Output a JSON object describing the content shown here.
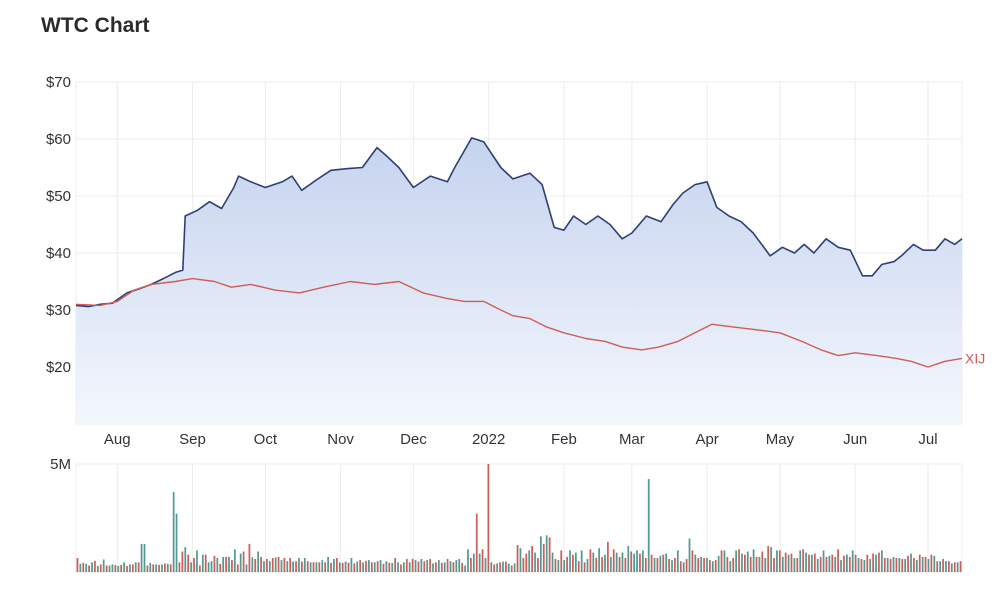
{
  "header": {
    "title": "WTC Chart"
  },
  "colors": {
    "wtc_line": "#2f3f74",
    "wtc_fill_top": "#c5d3ee",
    "wtc_fill_bottom": "#f4f7fd",
    "xij_line": "#cf5d57",
    "volume_up": "#4f9a94",
    "volume_down": "#cf5d57",
    "grid": "#ececec",
    "axis_text": "#333333"
  },
  "chart_data": [
    {
      "type": "line",
      "title": "",
      "xlabel": "",
      "ylabel": "",
      "ylim": [
        10,
        70
      ],
      "x_range": [
        "2021-07-15",
        "2022-07-15"
      ],
      "y_ticks": [
        "$20",
        "$30",
        "$40",
        "$50",
        "$60",
        "$70"
      ],
      "y_tick_values": [
        20,
        30,
        40,
        50,
        60,
        70
      ],
      "x_ticks": [
        "Aug",
        "Sep",
        "Oct",
        "Nov",
        "Dec",
        "2022",
        "Feb",
        "Mar",
        "Apr",
        "May",
        "Jun",
        "Jul"
      ],
      "x_tick_dates": [
        "2021-08-01",
        "2021-09-01",
        "2021-10-01",
        "2021-11-01",
        "2021-12-01",
        "2022-01-01",
        "2022-02-01",
        "2022-03-01",
        "2022-04-01",
        "2022-05-01",
        "2022-06-01",
        "2022-07-01"
      ],
      "grid": true,
      "series": [
        {
          "name": "",
          "style": "area",
          "x": [
            "2021-07-15",
            "2021-07-20",
            "2021-07-25",
            "2021-07-30",
            "2021-08-05",
            "2021-08-10",
            "2021-08-15",
            "2021-08-20",
            "2021-08-25",
            "2021-08-28",
            "2021-08-29",
            "2021-09-03",
            "2021-09-08",
            "2021-09-13",
            "2021-09-18",
            "2021-09-20",
            "2021-09-25",
            "2021-10-01",
            "2021-10-08",
            "2021-10-12",
            "2021-10-16",
            "2021-10-22",
            "2021-10-28",
            "2021-11-04",
            "2021-11-10",
            "2021-11-16",
            "2021-11-20",
            "2021-11-25",
            "2021-12-01",
            "2021-12-08",
            "2021-12-15",
            "2021-12-18",
            "2021-12-25",
            "2021-12-30",
            "2022-01-06",
            "2022-01-11",
            "2022-01-18",
            "2022-01-23",
            "2022-01-28",
            "2022-02-01",
            "2022-02-05",
            "2022-02-10",
            "2022-02-15",
            "2022-02-20",
            "2022-02-25",
            "2022-03-01",
            "2022-03-07",
            "2022-03-13",
            "2022-03-18",
            "2022-03-22",
            "2022-03-27",
            "2022-04-01",
            "2022-04-05",
            "2022-04-10",
            "2022-04-15",
            "2022-04-20",
            "2022-04-27",
            "2022-05-02",
            "2022-05-07",
            "2022-05-11",
            "2022-05-15",
            "2022-05-20",
            "2022-05-25",
            "2022-05-30",
            "2022-06-04",
            "2022-06-08",
            "2022-06-12",
            "2022-06-17",
            "2022-06-20",
            "2022-06-25",
            "2022-06-29",
            "2022-07-04",
            "2022-07-08",
            "2022-07-12",
            "2022-07-15"
          ],
          "y": [
            30.8,
            30.6,
            31.0,
            31.2,
            33.0,
            33.7,
            34.5,
            35.5,
            36.6,
            37.0,
            46.5,
            47.5,
            49.0,
            47.8,
            51.5,
            53.5,
            52.5,
            51.5,
            52.5,
            53.5,
            51.0,
            52.8,
            54.5,
            54.8,
            55.0,
            58.5,
            57.0,
            55.0,
            51.5,
            53.5,
            52.5,
            55.0,
            60.2,
            59.5,
            55.0,
            53.0,
            54.0,
            52.0,
            44.5,
            44.0,
            46.5,
            45.0,
            46.5,
            45.0,
            42.5,
            43.5,
            46.5,
            45.5,
            48.5,
            50.5,
            52.0,
            52.5,
            48.0,
            46.5,
            45.5,
            43.5,
            39.5,
            41.0,
            40.0,
            41.5,
            40.0,
            42.5,
            41.0,
            40.5,
            36.0,
            36.0,
            38.0,
            38.5,
            39.5,
            41.5,
            40.5,
            40.5,
            42.5,
            41.5,
            42.5
          ]
        },
        {
          "name": "XIJ",
          "style": "line",
          "x": [
            "2021-07-15",
            "2021-07-25",
            "2021-08-01",
            "2021-08-08",
            "2021-08-15",
            "2021-08-25",
            "2021-09-01",
            "2021-09-10",
            "2021-09-17",
            "2021-09-25",
            "2021-10-05",
            "2021-10-15",
            "2021-10-25",
            "2021-11-05",
            "2021-11-15",
            "2021-11-25",
            "2021-12-05",
            "2021-12-15",
            "2021-12-22",
            "2021-12-30",
            "2022-01-06",
            "2022-01-11",
            "2022-01-18",
            "2022-01-25",
            "2022-02-01",
            "2022-02-10",
            "2022-02-18",
            "2022-02-25",
            "2022-03-05",
            "2022-03-12",
            "2022-03-20",
            "2022-03-27",
            "2022-04-03",
            "2022-04-12",
            "2022-04-22",
            "2022-05-01",
            "2022-05-10",
            "2022-05-18",
            "2022-05-25",
            "2022-06-01",
            "2022-06-10",
            "2022-06-18",
            "2022-06-24",
            "2022-07-01",
            "2022-07-08",
            "2022-07-15"
          ],
          "y": [
            31.0,
            30.8,
            31.5,
            33.5,
            34.5,
            35.0,
            35.5,
            35.0,
            34.0,
            34.5,
            33.5,
            33.0,
            34.0,
            35.0,
            34.5,
            35.0,
            33.0,
            32.0,
            31.5,
            31.5,
            30.0,
            29.0,
            28.5,
            27.0,
            26.0,
            25.0,
            24.5,
            23.5,
            23.0,
            23.5,
            24.5,
            26.0,
            27.5,
            27.0,
            26.5,
            26.0,
            24.5,
            23.0,
            22.0,
            22.5,
            22.0,
            21.5,
            21.0,
            20.0,
            21.0,
            21.5
          ]
        }
      ]
    },
    {
      "type": "bar",
      "title": "",
      "xlabel": "",
      "ylabel": "",
      "ylim": [
        0,
        5000000
      ],
      "y_ticks": [
        "5M"
      ],
      "y_tick_values": [
        5000000
      ],
      "values": [
        650000,
        380000,
        420000,
        380000,
        300000,
        450000,
        520000,
        280000,
        350000,
        580000,
        300000,
        300000,
        350000,
        320000,
        280000,
        330000,
        450000,
        280000,
        350000,
        350000,
        450000,
        450000,
        1300000,
        1300000,
        300000,
        420000,
        350000,
        350000,
        330000,
        350000,
        400000,
        380000,
        350000,
        3700000,
        2700000,
        450000,
        950000,
        1150000,
        800000,
        450000,
        650000,
        1000000,
        300000,
        800000,
        800000,
        450000,
        500000,
        750000,
        650000,
        380000,
        700000,
        700000,
        700000,
        550000,
        1050000,
        350000,
        850000,
        950000,
        350000,
        1300000,
        680000,
        600000,
        950000,
        700000,
        500000,
        600000,
        500000,
        650000,
        680000,
        700000,
        550000,
        650000,
        500000,
        650000,
        480000,
        500000,
        650000,
        480000,
        650000,
        500000,
        450000,
        450000,
        450000,
        450000,
        550000,
        450000,
        700000,
        420000,
        600000,
        650000,
        450000,
        420000,
        480000,
        430000,
        650000,
        400000,
        480000,
        550000,
        450000,
        520000,
        550000,
        450000,
        450000,
        500000,
        550000,
        380000,
        500000,
        430000,
        420000,
        650000,
        450000,
        350000,
        450000,
        600000,
        450000,
        600000,
        550000,
        480000,
        600000,
        500000,
        550000,
        600000,
        400000,
        450000,
        550000,
        420000,
        450000,
        600000,
        500000,
        450000,
        550000,
        600000,
        420000,
        300000,
        1050000,
        650000,
        850000,
        2700000,
        850000,
        1050000,
        650000,
        5000000,
        450000,
        350000,
        400000,
        450000,
        480000,
        480000,
        380000,
        300000,
        400000,
        1250000,
        1100000,
        650000,
        850000,
        1000000,
        1200000,
        900000,
        650000,
        1650000,
        1300000,
        1700000,
        1600000,
        900000,
        600000,
        550000,
        1000000,
        550000,
        700000,
        1000000,
        800000,
        900000,
        500000,
        1000000,
        450000,
        600000,
        1050000,
        900000,
        650000,
        1100000,
        700000,
        800000,
        1400000,
        700000,
        1050000,
        900000,
        700000,
        900000,
        650000,
        1200000,
        950000,
        850000,
        1000000,
        850000,
        1000000,
        650000,
        4300000,
        800000,
        650000,
        650000,
        750000,
        800000,
        850000,
        600000,
        550000,
        650000,
        1000000,
        500000,
        450000,
        600000,
        1550000,
        1000000,
        800000,
        650000,
        700000,
        650000,
        650000,
        550000,
        500000,
        550000,
        750000,
        1000000,
        1000000,
        700000,
        500000,
        650000,
        1000000,
        1050000,
        850000,
        800000,
        950000,
        700000,
        1050000,
        700000,
        700000,
        950000,
        650000,
        1200000,
        1150000,
        650000,
        1000000,
        1000000,
        700000,
        900000,
        800000,
        850000,
        650000,
        650000,
        1000000,
        1050000,
        900000,
        800000,
        800000,
        850000,
        600000,
        700000,
        1000000,
        700000,
        750000,
        800000,
        700000,
        1050000,
        550000,
        750000,
        800000,
        700000,
        1000000,
        800000,
        650000,
        600000,
        550000,
        800000,
        600000,
        850000,
        800000,
        900000,
        1000000,
        650000,
        650000,
        600000,
        700000,
        650000,
        650000,
        600000,
        600000,
        750000,
        850000,
        650000,
        550000,
        800000,
        700000,
        700000,
        600000,
        800000,
        750000,
        500000,
        500000,
        600000,
        500000,
        500000,
        400000,
        450000,
        450000,
        500000
      ],
      "colors": [
        "down",
        "up",
        "down",
        "up",
        "down",
        "up",
        "down",
        "up",
        "down",
        "up",
        "down",
        "up",
        "up",
        "down",
        "up",
        "down",
        "up",
        "down",
        "up",
        "down",
        "up",
        "down",
        "up",
        "up",
        "down",
        "up",
        "down",
        "up",
        "down",
        "up",
        "down",
        "up",
        "down",
        "up",
        "up",
        "down",
        "down",
        "up",
        "down",
        "up",
        "down",
        "up",
        "down",
        "up",
        "down",
        "up",
        "up",
        "down",
        "up",
        "down",
        "up",
        "down",
        "up",
        "down",
        "up",
        "down",
        "up",
        "down",
        "up",
        "down",
        "up",
        "down",
        "up",
        "down",
        "up",
        "down",
        "up",
        "down",
        "up",
        "down",
        "up",
        "down",
        "up",
        "down",
        "up",
        "down",
        "up",
        "down",
        "up",
        "down",
        "up",
        "down",
        "up",
        "down",
        "up",
        "down",
        "up",
        "down",
        "up",
        "down",
        "up",
        "down",
        "up",
        "down",
        "up",
        "down",
        "up",
        "down",
        "up",
        "down",
        "up",
        "down",
        "up",
        "down",
        "up",
        "down",
        "up",
        "down",
        "up",
        "down",
        "up",
        "down",
        "up",
        "down",
        "up",
        "down",
        "up",
        "down",
        "up",
        "down",
        "up",
        "down",
        "up",
        "down",
        "up",
        "down",
        "up",
        "down",
        "up",
        "down",
        "up",
        "up",
        "down",
        "up",
        "up",
        "down",
        "up",
        "down",
        "up",
        "down",
        "up",
        "down",
        "up",
        "down",
        "up",
        "down",
        "up",
        "down",
        "up",
        "down",
        "up",
        "down",
        "up",
        "down",
        "down",
        "up",
        "down",
        "up",
        "down",
        "up",
        "down",
        "up",
        "down",
        "up",
        "down",
        "up",
        "down",
        "up",
        "down",
        "up",
        "down",
        "up",
        "down",
        "up",
        "down",
        "up",
        "down",
        "up",
        "down",
        "up",
        "down",
        "up",
        "down",
        "up",
        "down",
        "up",
        "down",
        "up",
        "down",
        "up",
        "down",
        "up",
        "up",
        "down",
        "up",
        "down",
        "up",
        "down",
        "up",
        "down",
        "up",
        "down",
        "up",
        "down",
        "up",
        "down",
        "up",
        "down",
        "up",
        "down",
        "up",
        "down",
        "up",
        "down",
        "up",
        "down",
        "up",
        "down",
        "up",
        "down",
        "up",
        "down",
        "up",
        "down",
        "up",
        "down",
        "up",
        "down",
        "up",
        "down",
        "up",
        "down",
        "up",
        "down",
        "up",
        "down",
        "up",
        "down",
        "up",
        "down",
        "up",
        "down",
        "up",
        "down",
        "up",
        "down",
        "up",
        "down",
        "up",
        "down",
        "up",
        "down",
        "up",
        "down",
        "up",
        "down",
        "up",
        "down",
        "up",
        "down",
        "up",
        "down",
        "up",
        "down",
        "up",
        "down",
        "up",
        "down",
        "up",
        "down",
        "up",
        "down",
        "up",
        "down",
        "up",
        "down",
        "up",
        "down",
        "up",
        "down",
        "up",
        "down",
        "up",
        "down",
        "up",
        "down",
        "up",
        "down",
        "up",
        "down",
        "up",
        "down",
        "up",
        "down",
        "up",
        "down",
        "up",
        "down",
        "up",
        "down",
        "up",
        "down",
        "up",
        "down",
        "up",
        "down"
      ]
    }
  ]
}
